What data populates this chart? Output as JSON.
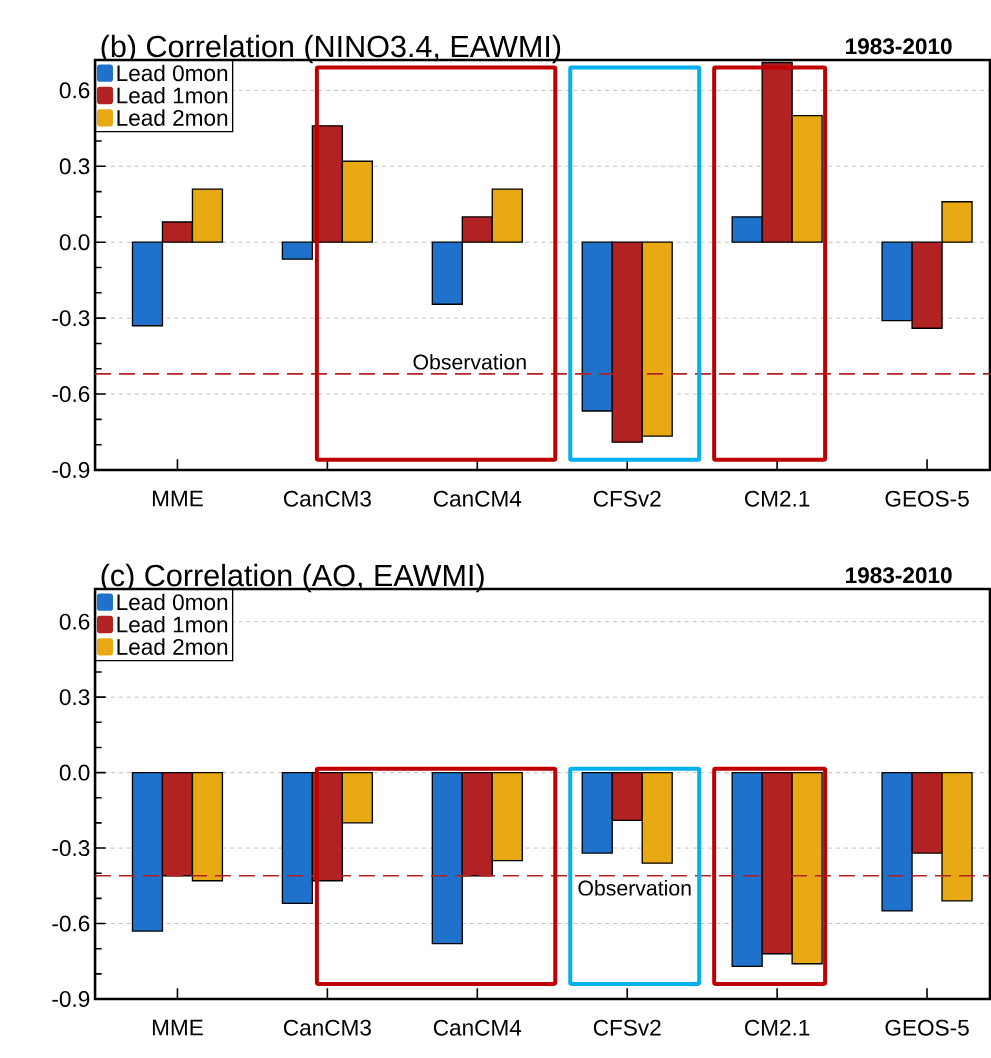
{
  "chart_data": [
    {
      "type": "bar",
      "title": "(b) Correlation (NINO3.4, EAWMI)",
      "annotations": [
        "1983-2010"
      ],
      "categories": [
        "MME",
        "CanCM3",
        "CanCM4",
        "CFSv2",
        "CM2.1",
        "GEOS-5"
      ],
      "series": [
        {
          "name": "Lead 0mon",
          "color": "#1f72cc",
          "values": [
            -0.33,
            -0.067,
            -0.245,
            -0.667,
            0.1,
            -0.31
          ]
        },
        {
          "name": "Lead 1mon",
          "color": "#b22222",
          "values": [
            0.08,
            0.46,
            0.1,
            -0.79,
            0.71,
            -0.34
          ]
        },
        {
          "name": "Lead 2mon",
          "color": "#e8a912",
          "values": [
            0.21,
            0.32,
            0.21,
            -0.766,
            0.5,
            0.16
          ]
        }
      ],
      "ylim": [
        -0.9,
        0.72
      ],
      "yticks": [
        -0.9,
        -0.6,
        -0.3,
        {
          "value": 0,
          "label": "0.0"
        },
        0.3,
        0.6
      ],
      "ref_lines": [
        {
          "axis": "y",
          "value": -0.52,
          "label": "Observation",
          "color": "#b22222",
          "line_style": "dashed"
        }
      ],
      "grid": "y",
      "legend": "top left"
    },
    {
      "type": "bar",
      "title": "(c) Correlation (AO, EAWMI)",
      "annotations": [
        "1983-2010"
      ],
      "categories": [
        "MME",
        "CanCM3",
        "CanCM4",
        "CFSv2",
        "CM2.1",
        "GEOS-5"
      ],
      "series": [
        {
          "name": "Lead 0mon",
          "color": "#1f72cc",
          "values": [
            -0.63,
            -0.52,
            -0.68,
            -0.32,
            -0.77,
            -0.55
          ]
        },
        {
          "name": "Lead 1mon",
          "color": "#b22222",
          "values": [
            -0.41,
            -0.43,
            -0.41,
            -0.19,
            -0.72,
            -0.32
          ]
        },
        {
          "name": "Lead 2mon",
          "color": "#e8a912",
          "values": [
            -0.43,
            -0.2,
            -0.35,
            -0.36,
            -0.76,
            -0.51
          ]
        }
      ],
      "ylim": [
        -0.9,
        0.73
      ],
      "yticks": [
        -0.9,
        -0.6,
        -0.3,
        {
          "value": 0,
          "label": "0.0"
        },
        0.3,
        0.6
      ],
      "ref_lines": [
        {
          "axis": "y",
          "value": -0.41,
          "label": "Observation",
          "color": "#b22222",
          "line_style": "dashed"
        }
      ],
      "grid": "y",
      "legend": "top left"
    }
  ]
}
